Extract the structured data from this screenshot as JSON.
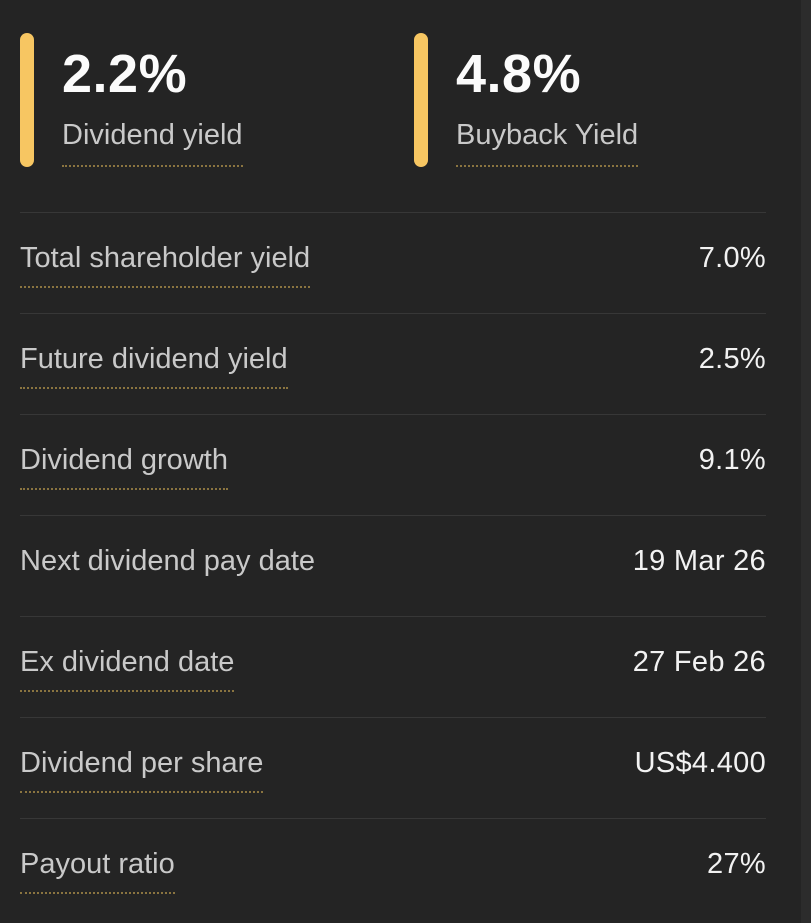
{
  "colors": {
    "background": "#242424",
    "accent_bar": "#f7c662",
    "dotted_underline": "#8a7440",
    "divider": "#373737",
    "label_text": "#c9c9c9",
    "value_text": "#f2f2f2",
    "stat_value_text": "#fbfbfb"
  },
  "highlights": [
    {
      "value": "2.2%",
      "label": "Dividend yield"
    },
    {
      "value": "4.8%",
      "label": "Buyback Yield"
    }
  ],
  "rows": [
    {
      "label": "Total shareholder yield",
      "value": "7.0%",
      "underline": true
    },
    {
      "label": "Future dividend yield",
      "value": "2.5%",
      "underline": true
    },
    {
      "label": "Dividend growth",
      "value": "9.1%",
      "underline": true
    },
    {
      "label": "Next dividend pay date",
      "value": "19 Mar 26",
      "underline": false
    },
    {
      "label": "Ex dividend date",
      "value": "27 Feb 26",
      "underline": true
    },
    {
      "label": "Dividend per share",
      "value": "US$4.400",
      "underline": true
    },
    {
      "label": "Payout ratio",
      "value": "27%",
      "underline": true
    }
  ]
}
